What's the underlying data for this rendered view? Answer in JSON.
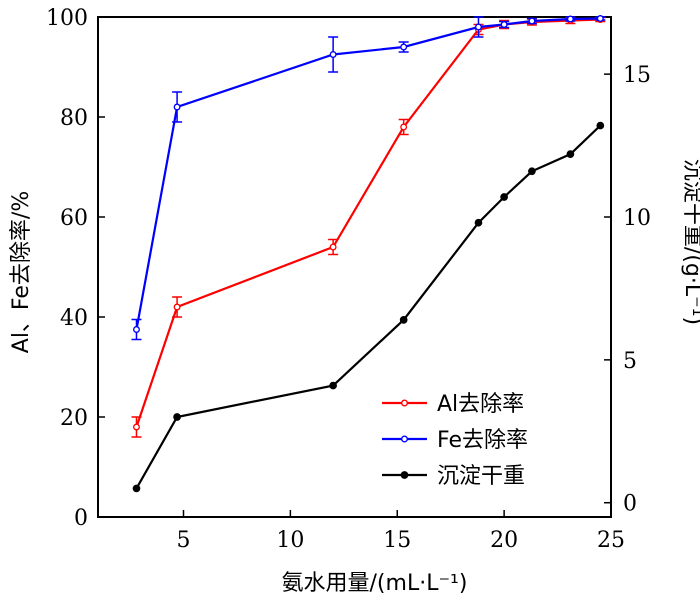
{
  "chart_data": {
    "type": "line",
    "xlabel": "氨水用量/(mL·L⁻¹)",
    "ylabel_left": "Al、Fe去除率/%",
    "ylabel_right": "沉淀干重/(g·L⁻¹)",
    "xlim": [
      1,
      25
    ],
    "ylim_left": [
      0,
      100
    ],
    "ylim_right": [
      -0.5,
      17
    ],
    "xticks": [
      5,
      10,
      15,
      20,
      25
    ],
    "yticks_left": [
      0,
      20,
      40,
      60,
      80,
      100
    ],
    "yticks_right": [
      0,
      5,
      10,
      15
    ],
    "grid": false,
    "legend_position": "bottom-right",
    "series": [
      {
        "name": "Al去除率",
        "axis": "left",
        "color": "#ff0000",
        "marker": "open-circle",
        "x": [
          2.8,
          4.7,
          12.0,
          15.3,
          18.8,
          20.0,
          21.3,
          23.1,
          24.5
        ],
        "y": [
          18,
          42,
          54,
          78,
          97.5,
          98.5,
          99,
          99.3,
          99.5
        ],
        "error": [
          2,
          2,
          1.5,
          1.5,
          1,
          0.8,
          0.6,
          0.6,
          0.4
        ]
      },
      {
        "name": "Fe去除率",
        "axis": "left",
        "color": "#0000ff",
        "marker": "open-circle",
        "x": [
          2.8,
          4.7,
          12.0,
          15.3,
          18.8,
          20.0,
          21.3,
          23.1,
          24.5
        ],
        "y": [
          37.5,
          82,
          92.5,
          94,
          98,
          98.5,
          99.2,
          99.6,
          99.7
        ],
        "error": [
          2,
          3,
          3.5,
          1,
          2,
          0.6,
          0.5,
          0.4,
          0.3
        ]
      },
      {
        "name": "沉淀干重",
        "axis": "right",
        "color": "#000000",
        "marker": "filled-circle",
        "x": [
          2.8,
          4.7,
          12.0,
          15.3,
          18.8,
          20.0,
          21.3,
          23.1,
          24.5
        ],
        "y": [
          0.5,
          3.0,
          4.1,
          6.4,
          9.8,
          10.7,
          11.6,
          12.2,
          13.2
        ]
      }
    ]
  }
}
